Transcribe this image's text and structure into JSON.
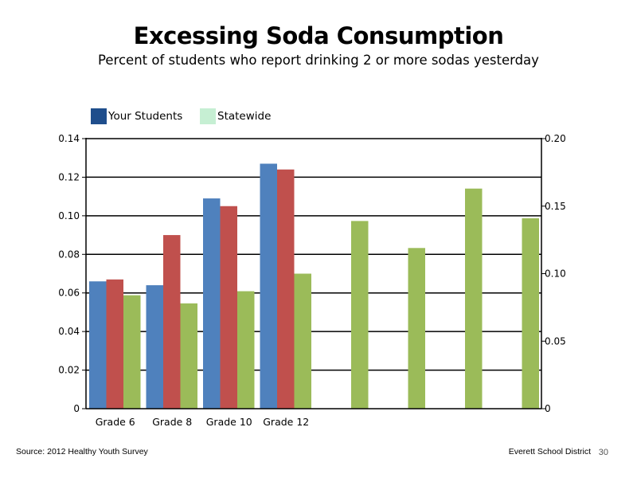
{
  "slide": {
    "title": "Excessing Soda Consumption",
    "subtitle": "Percent of students who report drinking 2 or more sodas yesterday",
    "source": "Source: 2012 Healthy Youth Survey",
    "org": "Everett School District",
    "page_number": "30"
  },
  "legend": {
    "items": [
      {
        "label": "Your Students",
        "color": "#1f4e8c"
      },
      {
        "label": "Statewide",
        "color": "#c6efd3"
      }
    ]
  },
  "chart_data": {
    "type": "bar",
    "categories": [
      "Grade 6",
      "Grade 8",
      "Grade 10",
      "Grade 12",
      "",
      "",
      "",
      ""
    ],
    "series": [
      {
        "axis": "left",
        "color": "#4f81bd",
        "values": [
          0.066,
          0.064,
          0.109,
          0.127,
          null,
          null,
          null,
          null
        ]
      },
      {
        "axis": "left",
        "color": "#c0504d",
        "values": [
          0.067,
          0.09,
          0.105,
          0.124,
          null,
          null,
          null,
          null
        ]
      },
      {
        "axis": "right",
        "color": "#9bbb59",
        "values": [
          0.084,
          0.078,
          0.087,
          0.1,
          0.139,
          0.119,
          0.163,
          0.141
        ]
      }
    ],
    "left_axis": {
      "ylim": [
        0,
        0.14
      ],
      "ticks": [
        "0",
        "0.02",
        "0.04",
        "0.06",
        "0.08",
        "0.10",
        "0.12",
        "0.14"
      ]
    },
    "right_axis": {
      "ylim": [
        0,
        0.2
      ],
      "ticks": [
        "0",
        "0.05",
        "0.10",
        "0.15",
        "0.20"
      ]
    },
    "gridlines": true,
    "legend_position": "top-left"
  }
}
